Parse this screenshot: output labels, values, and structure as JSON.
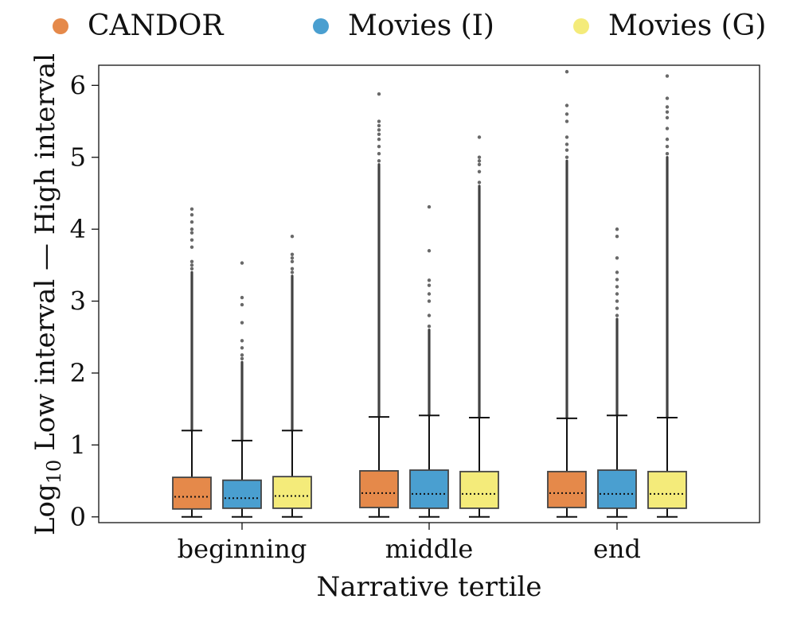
{
  "legend": {
    "items": [
      {
        "label": "CANDOR",
        "color": "#E5894A"
      },
      {
        "label": "Movies (I)",
        "color": "#4A9FD0"
      },
      {
        "label": "Movies (G)",
        "color": "#F4EB7A"
      }
    ]
  },
  "chart_data": {
    "type": "box",
    "title": "",
    "xlabel": "Narrative tertile",
    "ylabel_main": "Log",
    "ylabel_sub": "10",
    "ylabel_rest": " Low interval — High interval",
    "categories": [
      "beginning",
      "middle",
      "end"
    ],
    "ylim": [
      -0.08,
      6.28
    ],
    "yticks": [
      0,
      1,
      2,
      3,
      4,
      5,
      6
    ],
    "series": [
      {
        "name": "CANDOR",
        "color": "#E5894A",
        "boxes": [
          {
            "whisker_low": 0.0,
            "q1": 0.11,
            "median": 0.28,
            "q3": 0.55,
            "whisker_high": 1.2,
            "outlier_dense_range": [
              1.2,
              3.4
            ],
            "outliers": [
              3.45,
              3.5,
              3.55,
              3.75,
              3.85,
              3.95,
              4.0,
              4.1,
              4.2,
              4.28
            ]
          },
          {
            "whisker_low": 0.0,
            "q1": 0.13,
            "median": 0.33,
            "q3": 0.64,
            "whisker_high": 1.39,
            "outlier_dense_range": [
              1.39,
              4.9
            ],
            "outliers": [
              4.95,
              5.05,
              5.15,
              5.25,
              5.32,
              5.38,
              5.44,
              5.5,
              5.88
            ]
          },
          {
            "whisker_low": 0.0,
            "q1": 0.13,
            "median": 0.33,
            "q3": 0.63,
            "whisker_high": 1.37,
            "outlier_dense_range": [
              1.37,
              4.95
            ],
            "outliers": [
              5.0,
              5.1,
              5.18,
              5.28,
              5.5,
              5.6,
              5.72,
              6.19
            ]
          }
        ]
      },
      {
        "name": "Movies (I)",
        "color": "#4A9FD0",
        "boxes": [
          {
            "whisker_low": 0.0,
            "q1": 0.12,
            "median": 0.26,
            "q3": 0.51,
            "whisker_high": 1.06,
            "outlier_dense_range": [
              1.06,
              2.15
            ],
            "outliers": [
              2.2,
              2.25,
              2.35,
              2.45,
              2.7,
              2.95,
              3.05,
              3.53
            ]
          },
          {
            "whisker_low": 0.0,
            "q1": 0.12,
            "median": 0.32,
            "q3": 0.65,
            "whisker_high": 1.41,
            "outlier_dense_range": [
              1.41,
              2.6
            ],
            "outliers": [
              2.65,
              2.8,
              3.0,
              3.1,
              3.22,
              3.29,
              3.7,
              4.31
            ]
          },
          {
            "whisker_low": 0.0,
            "q1": 0.12,
            "median": 0.32,
            "q3": 0.65,
            "whisker_high": 1.41,
            "outlier_dense_range": [
              1.41,
              2.75
            ],
            "outliers": [
              2.8,
              2.9,
              3.0,
              3.1,
              3.2,
              3.3,
              3.4,
              3.6,
              3.9,
              4.0
            ]
          }
        ]
      },
      {
        "name": "Movies (G)",
        "color": "#F4EB7A",
        "boxes": [
          {
            "whisker_low": 0.0,
            "q1": 0.12,
            "median": 0.29,
            "q3": 0.56,
            "whisker_high": 1.2,
            "outlier_dense_range": [
              1.2,
              3.35
            ],
            "outliers": [
              3.4,
              3.45,
              3.55,
              3.6,
              3.65,
              3.9
            ]
          },
          {
            "whisker_low": 0.0,
            "q1": 0.12,
            "median": 0.32,
            "q3": 0.63,
            "whisker_high": 1.38,
            "outlier_dense_range": [
              1.38,
              4.6
            ],
            "outliers": [
              4.65,
              4.8,
              4.9,
              4.95,
              5.0,
              5.28
            ]
          },
          {
            "whisker_low": 0.0,
            "q1": 0.12,
            "median": 0.32,
            "q3": 0.63,
            "whisker_high": 1.38,
            "outlier_dense_range": [
              1.38,
              5.0
            ],
            "outliers": [
              5.05,
              5.15,
              5.25,
              5.4,
              5.55,
              5.63,
              5.7,
              5.82,
              6.13
            ]
          }
        ]
      }
    ]
  }
}
